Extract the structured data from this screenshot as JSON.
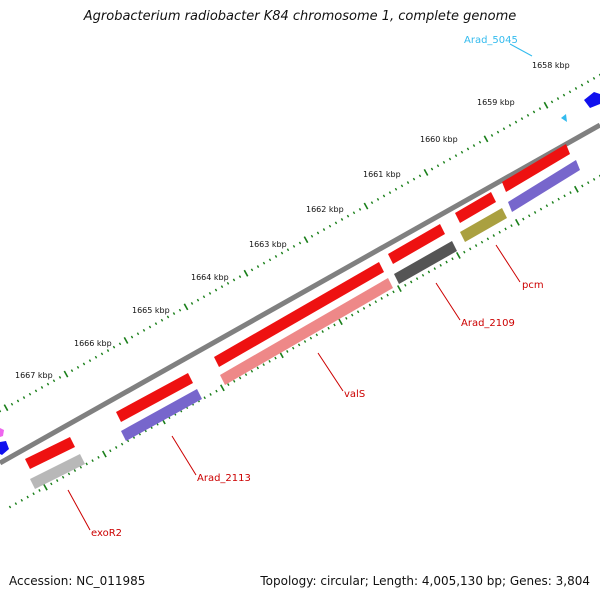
{
  "title": "Agrobacterium radiobacter K84 chromosome 1, complete genome",
  "footer": {
    "accession": "Accession: NC_011985",
    "summary": "Topology: circular; Length: 4,005,130 bp; Genes: 3,804"
  },
  "scale": {
    "tick_labels": [
      "1658 kbp",
      "1659 kbp",
      "1660 kbp",
      "1661 kbp",
      "1662 kbp",
      "1663 kbp",
      "1664 kbp",
      "1665 kbp",
      "1666 kbp",
      "1667 kbp"
    ],
    "tick_color": "#1a7f1a"
  },
  "backbone_color": "#808080",
  "gene_labels": [
    {
      "name": "Arad_5045",
      "color": "#33bbee"
    },
    {
      "name": "pcm",
      "color": "#cc0000"
    },
    {
      "name": "Arad_2109",
      "color": "#cc0000"
    },
    {
      "name": "valS",
      "color": "#cc0000"
    },
    {
      "name": "Arad_2113",
      "color": "#cc0000"
    },
    {
      "name": "exoR2",
      "color": "#cc0000"
    }
  ],
  "feature_colors": {
    "gene": "#ee1111",
    "cds": "#7766cc",
    "cds_valS": "#ee8888",
    "cds_pcm": "#aaa040",
    "cds_2109": "#555555",
    "cds_exoR2": "#b8b8b8",
    "neighbor": "#1111ee"
  }
}
